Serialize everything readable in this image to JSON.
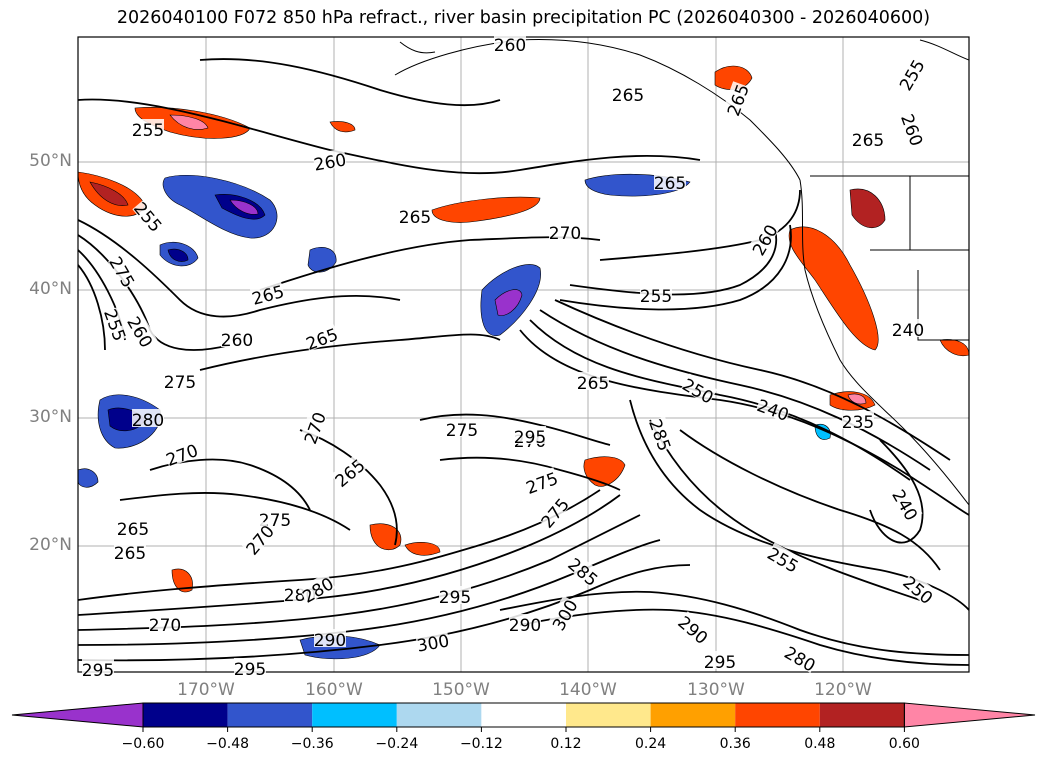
{
  "title": "2026040100 F072 850 hPa refract., river basin precipitation PC (2026040300 - 2026040600)",
  "map": {
    "lat_labels": [
      "50°N",
      "40°N",
      "30°N",
      "20°N"
    ],
    "lon_labels": [
      "170°W",
      "160°W",
      "150°W",
      "140°W",
      "130°W",
      "120°W"
    ],
    "contour_labels": [
      "260",
      "255",
      "255",
      "265",
      "260",
      "275",
      "255",
      "260",
      "265",
      "260",
      "265",
      "275",
      "280",
      "270",
      "270",
      "265",
      "275",
      "270",
      "275",
      "275",
      "270",
      "265",
      "270",
      "280",
      "275",
      "280",
      "285",
      "290",
      "295",
      "290",
      "300",
      "295",
      "300",
      "295",
      "290",
      "295",
      "280",
      "285",
      "295",
      "265",
      "270",
      "265",
      "255",
      "250",
      "240",
      "235",
      "240",
      "250",
      "255",
      "260",
      "240",
      "265",
      "265",
      "260",
      "265",
      "255",
      "265"
    ],
    "grid_color": "#b0b0b0"
  },
  "colorbar": {
    "ticks": [
      "−0.60",
      "−0.48",
      "−0.36",
      "−0.24",
      "−0.12",
      "0.12",
      "0.24",
      "0.36",
      "0.48",
      "0.60"
    ],
    "colors": [
      "#9932cc",
      "#00008b",
      "#3255cc",
      "#00bfff",
      "#add8ef",
      "#ffffff",
      "#ffe88c",
      "#ffa000",
      "#ff4500",
      "#b22222",
      "#ff85a6"
    ]
  }
}
